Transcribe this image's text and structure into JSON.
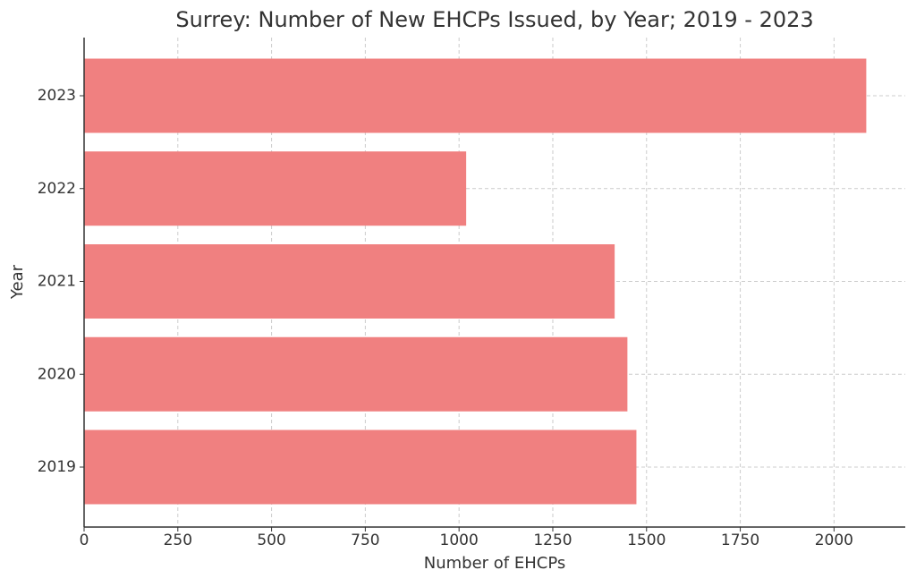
{
  "chart_data": {
    "type": "barh",
    "title": "Surrey: Number of New EHCPs Issued, by Year; 2019 - 2023",
    "x_label": "Number of EHCPs",
    "y_label": "Year",
    "categories": [
      "2019",
      "2020",
      "2021",
      "2022",
      "2023"
    ],
    "values": [
      1473,
      1449,
      1415,
      1019,
      2086
    ],
    "color": "#f08080",
    "xlim": [
      0,
      2190
    ],
    "xticks": [
      0,
      250,
      500,
      750,
      1000,
      1250,
      1500,
      1750,
      2000
    ],
    "grid": true
  }
}
